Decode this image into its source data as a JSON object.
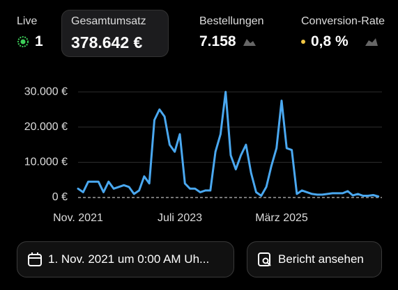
{
  "metrics": [
    {
      "label": "Live",
      "value": "1"
    },
    {
      "label": "Gesamtumsatz",
      "value": "378.642 €"
    },
    {
      "label": "Bestellungen",
      "value": "7.158"
    },
    {
      "label": "Conversion-Rate",
      "value": "0,8 %"
    }
  ],
  "chart_data": {
    "type": "line",
    "categories": [
      "Nov. 2021",
      null,
      null,
      null,
      null,
      null,
      null,
      null,
      null,
      null,
      null,
      null,
      null,
      null,
      null,
      null,
      null,
      null,
      null,
      null,
      "Juli 2023",
      null,
      null,
      null,
      null,
      null,
      null,
      null,
      null,
      null,
      null,
      null,
      null,
      null,
      null,
      null,
      null,
      null,
      null,
      null,
      "März 2025",
      null,
      null,
      null,
      null,
      null,
      null,
      null,
      null,
      null,
      null,
      null,
      null,
      null,
      null,
      null,
      null,
      null,
      null,
      null
    ],
    "series": [
      {
        "color": "#4aa8f0",
        "values": [
          2500,
          1500,
          4500,
          4500,
          4500,
          1500,
          4500,
          2500,
          3000,
          3500,
          3000,
          1000,
          2000,
          6000,
          4000,
          22000,
          25000,
          23000,
          15000,
          13000,
          18000,
          4000,
          2500,
          2500,
          1500,
          2000,
          2000,
          13000,
          18000,
          30000,
          12000,
          8000,
          12000,
          15000,
          7000,
          1500,
          500,
          3000,
          9000,
          14000,
          27500,
          14000,
          13500,
          1000,
          2000,
          1500,
          1000,
          800,
          800,
          1000,
          1200,
          1200,
          1200,
          1800,
          600,
          1000,
          500,
          500,
          700,
          300
        ]
      }
    ],
    "ylim": [
      0,
      32000
    ],
    "yticks": [
      {
        "value": 0,
        "label": "0 €"
      },
      {
        "value": 10000,
        "label": "10.000 €"
      },
      {
        "value": 20000,
        "label": "20.000 €"
      },
      {
        "value": 30000,
        "label": "30.000 €"
      }
    ],
    "grid": true
  },
  "buttons": {
    "date_range": "1. Nov. 2021 um 0:00 AM Uh...",
    "report": "Bericht ansehen"
  }
}
